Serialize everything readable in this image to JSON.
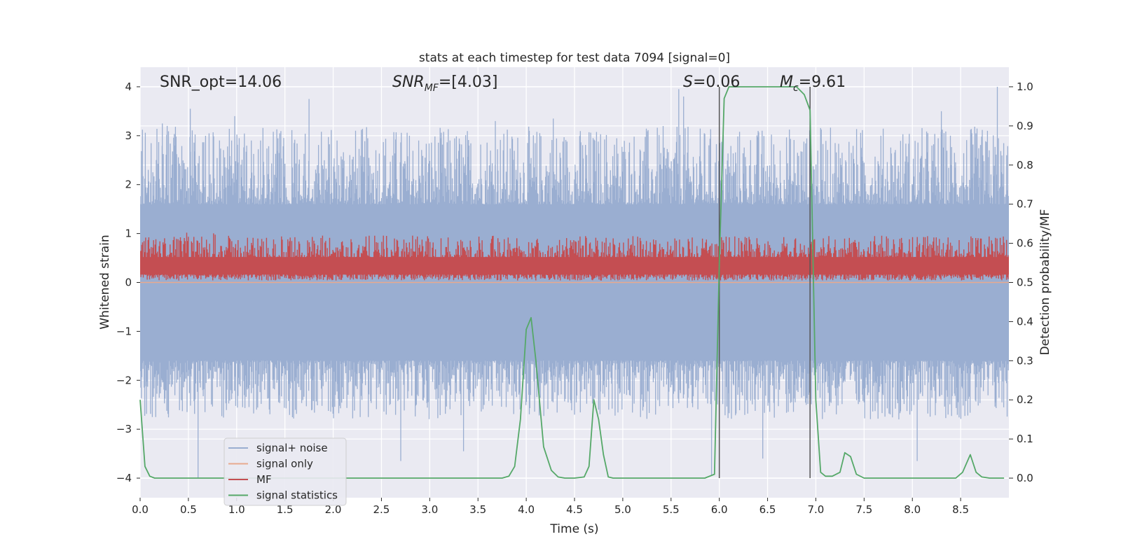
{
  "chart_data": {
    "type": "line",
    "title": "stats at each timestep for test data 7094 [signal=0]",
    "xlabel": "Time (s)",
    "ylabel_left": "Whitened strain",
    "ylabel_right": "Detection probability/MF",
    "xlim": [
      0.0,
      9.0
    ],
    "ylim_left": [
      -4.4,
      4.4
    ],
    "ylim_right": [
      -0.05,
      1.05
    ],
    "x_ticks": [
      0.0,
      0.5,
      1.0,
      1.5,
      2.0,
      2.5,
      3.0,
      3.5,
      4.0,
      4.5,
      5.0,
      5.5,
      6.0,
      6.5,
      7.0,
      7.5,
      8.0,
      8.5
    ],
    "x_tick_labels": [
      "0.0",
      "0.5",
      "1.0",
      "1.5",
      "2.0",
      "2.5",
      "3.0",
      "3.5",
      "4.0",
      "4.5",
      "5.0",
      "5.5",
      "6.0",
      "6.5",
      "7.0",
      "7.5",
      "8.0",
      "8.5"
    ],
    "y_ticks_left": [
      -4,
      -3,
      -2,
      -1,
      0,
      1,
      2,
      3,
      4
    ],
    "y_tick_labels_left": [
      "−4",
      "−3",
      "−2",
      "−1",
      "0",
      "1",
      "2",
      "3",
      "4"
    ],
    "y_ticks_right": [
      0.0,
      0.1,
      0.2,
      0.3,
      0.4,
      0.5,
      0.6,
      0.7,
      0.8,
      0.9,
      1.0
    ],
    "y_tick_labels_right": [
      "0.0",
      "0.1",
      "0.2",
      "0.3",
      "0.4",
      "0.5",
      "0.6",
      "0.7",
      "0.8",
      "0.9",
      "1.0"
    ],
    "grid": true,
    "legend_position": "lower-left",
    "annotations": {
      "snr_opt": "SNR_opt=14.06",
      "snr_mf_main": "SNR",
      "snr_mf_sub": "MF",
      "snr_mf_value": "=[4.03]",
      "s_main": "S",
      "s_value": "=0.06",
      "mc_main": "M",
      "mc_sub": "c",
      "mc_value": "=9.61"
    },
    "vertical_markers": [
      6.0,
      6.94
    ],
    "series": [
      {
        "name": "signal+ noise",
        "color": "#9aaed1",
        "axis": "left",
        "description_shape": "dense noise band",
        "baseline_band": [
          -1.6,
          1.6
        ],
        "peak_times": [
          0.23,
          0.28,
          0.52,
          0.98,
          1.75,
          3.68,
          4.28,
          5.58,
          5.63,
          8.3,
          8.88
        ],
        "peak_values": [
          3.25,
          3.2,
          3.55,
          3.4,
          3.75,
          3.3,
          3.35,
          3.95,
          3.8,
          3.5,
          4.0
        ],
        "trough_times": [
          0.6,
          2.7,
          3.35,
          4.75,
          5.92,
          6.45,
          8.05
        ],
        "trough_values": [
          -4.0,
          -3.65,
          -3.45,
          -2.6,
          -3.95,
          -3.6,
          -3.65
        ]
      },
      {
        "name": "signal only",
        "color": "#e8a98e",
        "axis": "left",
        "x": [
          0.0,
          9.0
        ],
        "y": [
          0.0,
          0.0
        ]
      },
      {
        "name": "MF",
        "color": "#c44e52",
        "axis": "right",
        "description_shape": "noisy band",
        "band": [
          0.505,
          0.62
        ]
      },
      {
        "name": "signal statistics",
        "color": "#55a868",
        "axis": "right",
        "x": [
          0.0,
          0.05,
          0.1,
          0.15,
          0.2,
          0.3,
          0.5,
          1.0,
          2.0,
          3.0,
          3.5,
          3.75,
          3.82,
          3.88,
          3.94,
          4.0,
          4.05,
          4.1,
          4.18,
          4.26,
          4.33,
          4.4,
          4.5,
          4.6,
          4.65,
          4.7,
          4.75,
          4.8,
          4.85,
          4.9,
          5.0,
          5.5,
          5.85,
          5.95,
          6.0,
          6.05,
          6.1,
          6.2,
          6.3,
          6.8,
          6.88,
          6.94,
          7.0,
          7.05,
          7.1,
          7.17,
          7.25,
          7.3,
          7.36,
          7.42,
          7.5,
          7.6,
          8.0,
          8.45,
          8.52,
          8.6,
          8.66,
          8.72,
          8.8,
          8.95
        ],
        "y": [
          0.2,
          0.03,
          0.005,
          0.0,
          0.0,
          0.0,
          0.0,
          0.0,
          0.0,
          0.0,
          0.0,
          0.0,
          0.005,
          0.03,
          0.15,
          0.38,
          0.41,
          0.3,
          0.08,
          0.02,
          0.003,
          0.0,
          0.0,
          0.003,
          0.03,
          0.2,
          0.15,
          0.06,
          0.003,
          0.0,
          0.0,
          0.0,
          0.0,
          0.01,
          0.55,
          0.97,
          1.0,
          1.0,
          1.0,
          1.0,
          0.98,
          0.94,
          0.2,
          0.015,
          0.005,
          0.005,
          0.015,
          0.065,
          0.055,
          0.01,
          0.0,
          0.0,
          0.0,
          0.0,
          0.015,
          0.06,
          0.015,
          0.003,
          0.0,
          0.0
        ]
      }
    ]
  }
}
